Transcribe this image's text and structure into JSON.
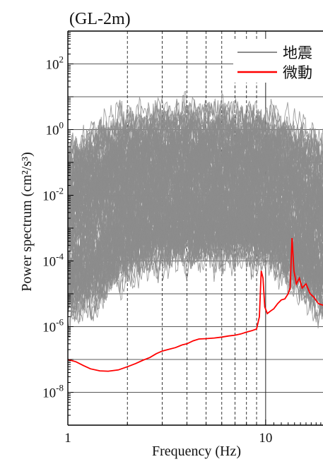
{
  "chart_data": {
    "type": "line",
    "title": "(GL-2m)",
    "xlabel": "Frequency (Hz)",
    "ylabel": "Power spectrum (cm²/s³)",
    "x_scale": "log",
    "y_scale": "log",
    "xlim": [
      1,
      19.5
    ],
    "ylim": [
      1e-09,
      1000.0
    ],
    "x_tick_labels": [
      {
        "value": 1,
        "label": "1"
      },
      {
        "value": 10,
        "label": "10"
      }
    ],
    "y_tick_labels": [
      {
        "value": 100,
        "base": "10",
        "exp": "2"
      },
      {
        "value": 1,
        "base": "10",
        "exp": "0"
      },
      {
        "value": 0.01,
        "base": "10",
        "exp": "-2"
      },
      {
        "value": 0.0001,
        "base": "10",
        "exp": "-4"
      },
      {
        "value": 1e-06,
        "base": "10",
        "exp": "-6"
      },
      {
        "value": 1e-08,
        "base": "10",
        "exp": "-8"
      }
    ],
    "vertical_dashed_gridlines_at": [
      2,
      3,
      4,
      5,
      6,
      7,
      8,
      9
    ],
    "horizontal_gridlines": true,
    "legend_position": "top-right",
    "colors": {
      "earthquake": "#8c8c8c",
      "microtremor": "#ff0000"
    },
    "series": [
      {
        "name": "地震",
        "color": "#8c8c8c",
        "count": 150,
        "style": "band",
        "band_center": [
          [
            1,
            0.0012
          ],
          [
            1.3,
            0.003
          ],
          [
            1.7,
            0.006
          ],
          [
            2,
            0.009
          ],
          [
            3,
            0.012
          ],
          [
            4,
            0.013
          ],
          [
            5,
            0.013
          ],
          [
            6,
            0.012
          ],
          [
            7,
            0.012
          ],
          [
            8,
            0.012
          ],
          [
            9,
            0.011
          ],
          [
            10,
            0.01
          ],
          [
            12,
            0.006
          ],
          [
            14,
            0.003
          ],
          [
            16,
            0.0017
          ],
          [
            19.5,
            0.0009
          ]
        ],
        "band_upper": [
          [
            1,
            0.3
          ],
          [
            1.5,
            1.5
          ],
          [
            2,
            3
          ],
          [
            3,
            4
          ],
          [
            4,
            5
          ],
          [
            6,
            5
          ],
          [
            8,
            4
          ],
          [
            10,
            3.5
          ],
          [
            12,
            2.5
          ],
          [
            15,
            1.5
          ],
          [
            19.5,
            0.5
          ]
        ],
        "band_lower": [
          [
            1,
            1e-06
          ],
          [
            1.3,
            2e-06
          ],
          [
            1.7,
            1e-05
          ],
          [
            2,
            3e-05
          ],
          [
            3,
            8e-05
          ],
          [
            5,
            0.0001
          ],
          [
            8,
            0.0001
          ],
          [
            10,
            8e-05
          ],
          [
            12,
            4e-05
          ],
          [
            14,
            1e-05
          ],
          [
            17,
            4e-06
          ],
          [
            19.5,
            2e-06
          ]
        ]
      },
      {
        "name": "微動",
        "color": "#ff0000",
        "points": [
          [
            1,
            1e-07
          ],
          [
            1.1,
            8.5e-08
          ],
          [
            1.2,
            6.5e-08
          ],
          [
            1.3,
            5.2e-08
          ],
          [
            1.45,
            4.5e-08
          ],
          [
            1.6,
            4.4e-08
          ],
          [
            1.8,
            4.8e-08
          ],
          [
            2.0,
            6e-08
          ],
          [
            2.2,
            7.5e-08
          ],
          [
            2.4,
            9.5e-08
          ],
          [
            2.6,
            1.15e-07
          ],
          [
            2.8,
            1.5e-07
          ],
          [
            3.0,
            1.8e-07
          ],
          [
            3.2,
            2e-07
          ],
          [
            3.5,
            2.3e-07
          ],
          [
            3.8,
            2.8e-07
          ],
          [
            4.0,
            3e-07
          ],
          [
            4.3,
            3.7e-07
          ],
          [
            4.6,
            4.2e-07
          ],
          [
            5.0,
            4.3e-07
          ],
          [
            5.5,
            4.5e-07
          ],
          [
            6.0,
            4.8e-07
          ],
          [
            6.5,
            5.2e-07
          ],
          [
            7.0,
            5.5e-07
          ],
          [
            7.5,
            6e-07
          ],
          [
            8.0,
            6.8e-07
          ],
          [
            8.5,
            7.5e-07
          ],
          [
            9.0,
            8.5e-07
          ],
          [
            9.3,
            2e-06
          ],
          [
            9.5,
            5e-05
          ],
          [
            9.7,
            3e-05
          ],
          [
            9.9,
            4e-06
          ],
          [
            10.2,
            2.5e-06
          ],
          [
            10.6,
            3e-06
          ],
          [
            11.0,
            3.5e-06
          ],
          [
            11.5,
            5e-06
          ],
          [
            12.0,
            6.5e-06
          ],
          [
            12.5,
            7e-06
          ],
          [
            13.0,
            1e-05
          ],
          [
            13.3,
            1.5e-05
          ],
          [
            13.6,
            0.0005
          ],
          [
            13.9,
            5e-05
          ],
          [
            14.3,
            2e-05
          ],
          [
            14.8,
            3e-05
          ],
          [
            15.3,
            1.5e-05
          ],
          [
            16.0,
            2e-05
          ],
          [
            16.8,
            1e-05
          ],
          [
            17.5,
            8e-06
          ],
          [
            18.5,
            5e-06
          ],
          [
            19.5,
            4.5e-06
          ]
        ]
      }
    ]
  }
}
